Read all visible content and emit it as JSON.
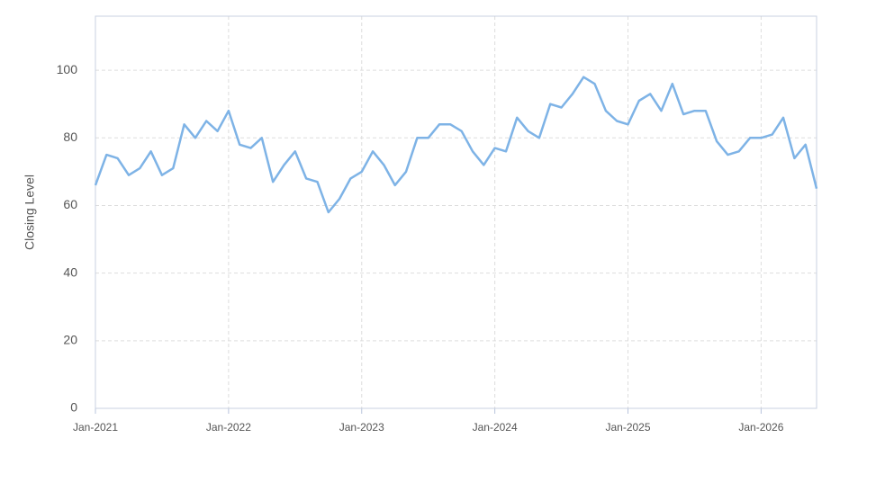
{
  "chart_data": {
    "type": "line",
    "y_label": "Closing Level",
    "x": [
      "Jan-2021",
      "Feb-2021",
      "Mar-2021",
      "Apr-2021",
      "May-2021",
      "Jun-2021",
      "Jul-2021",
      "Aug-2021",
      "Sep-2021",
      "Oct-2021",
      "Nov-2021",
      "Dec-2021",
      "Jan-2022",
      "Feb-2022",
      "Mar-2022",
      "Apr-2022",
      "May-2022",
      "Jun-2022",
      "Jul-2022",
      "Aug-2022",
      "Sep-2022",
      "Oct-2022",
      "Nov-2022",
      "Dec-2022",
      "Jan-2023",
      "Feb-2023",
      "Mar-2023",
      "Apr-2023",
      "May-2023",
      "Jun-2023",
      "Jul-2023",
      "Aug-2023",
      "Sep-2023",
      "Oct-2023",
      "Nov-2023",
      "Dec-2023",
      "Jan-2024",
      "Feb-2024",
      "Mar-2024",
      "Apr-2024",
      "May-2024",
      "Jun-2024",
      "Jul-2024",
      "Aug-2024",
      "Sep-2024",
      "Oct-2024",
      "Nov-2024",
      "Dec-2024",
      "Jan-2025",
      "Feb-2025",
      "Mar-2025",
      "Apr-2025",
      "May-2025",
      "Jun-2025",
      "Jul-2025",
      "Aug-2025",
      "Sep-2025",
      "Oct-2025",
      "Nov-2025",
      "Dec-2025",
      "Jan-2026",
      "Feb-2026",
      "Mar-2026",
      "Apr-2026",
      "May-2026",
      "Jun-2026"
    ],
    "series": [
      {
        "color": "#7eb3e6",
        "values": [
          66,
          75,
          74,
          69,
          71,
          76,
          69,
          71,
          84,
          80,
          85,
          82,
          88,
          78,
          77,
          80,
          67,
          72,
          76,
          68,
          67,
          58,
          62,
          68,
          70,
          76,
          72,
          66,
          70,
          80,
          80,
          84,
          84,
          82,
          76,
          72,
          77,
          76,
          86,
          82,
          80,
          90,
          89,
          93,
          98,
          96,
          88,
          85,
          84,
          91,
          93,
          88,
          96,
          87,
          88,
          88,
          79,
          75,
          76,
          80,
          80,
          81,
          86,
          74,
          78,
          65
        ]
      }
    ],
    "xlim": [
      "Jan-2021",
      "Jun-2026"
    ],
    "xticks": [
      "Jan-2021",
      "Jan-2022",
      "Jan-2023",
      "Jan-2024",
      "Jan-2025",
      "Jan-2026"
    ],
    "ylim": [
      0,
      116
    ],
    "yticks": [
      0,
      20,
      40,
      60,
      80,
      100
    ],
    "grid": true
  }
}
